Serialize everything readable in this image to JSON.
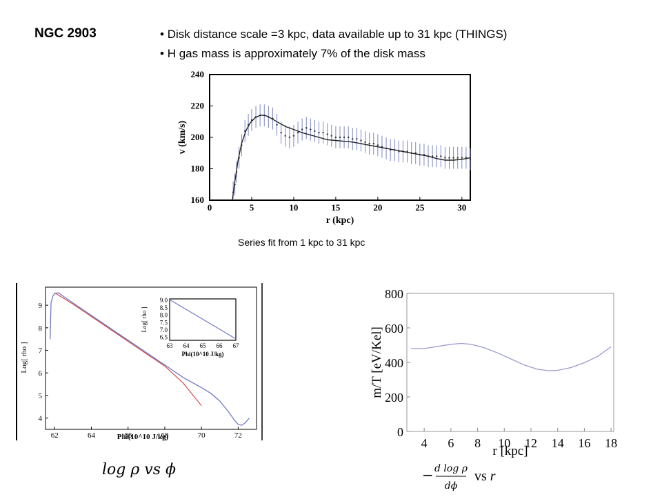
{
  "header": {
    "title": "NGC 2903",
    "bullets": [
      "Disk distance scale =3 kpc, data available up to 31 kpc (THINGS)",
      "H gas mass is approximately  7% of the disk mass"
    ],
    "bullet_char": "•"
  },
  "caption": "Series fit from 1 kpc to 31 kpc",
  "bottom_captions": {
    "left": "log ρ vs ϕ",
    "right": "− d log ρ / dϕ vs r"
  },
  "chart_data": [
    {
      "id": "rotation-curve",
      "type": "scatter",
      "xlabel": "r (kpc)",
      "ylabel": "v (km/s)",
      "xlim": [
        0,
        31
      ],
      "ylim": [
        160,
        240
      ],
      "xticks": [
        0,
        5,
        10,
        15,
        20,
        25,
        30
      ],
      "yticks": [
        160,
        180,
        200,
        220,
        240
      ],
      "grid": false,
      "series": [
        {
          "points": [
            [
              2.8,
              165
            ],
            [
              3.0,
              170
            ],
            [
              3.2,
              178
            ],
            [
              3.5,
              187
            ],
            [
              3.8,
              195
            ],
            [
              4.2,
              204
            ],
            [
              4.6,
              208
            ],
            [
              5.0,
              211
            ],
            [
              5.5,
              213
            ],
            [
              6.0,
              214
            ],
            [
              6.5,
              214
            ],
            [
              7.0,
              213
            ],
            [
              7.5,
              212
            ],
            [
              8.0,
              208
            ],
            [
              8.5,
              203
            ],
            [
              9.0,
              201
            ],
            [
              9.5,
              200
            ],
            [
              10.0,
              201
            ],
            [
              10.5,
              203
            ],
            [
              11.0,
              205
            ],
            [
              11.5,
              206
            ],
            [
              12.0,
              205
            ],
            [
              12.5,
              204
            ],
            [
              13.0,
              203
            ],
            [
              13.5,
              203
            ],
            [
              14.0,
              202
            ],
            [
              14.5,
              201
            ],
            [
              15.0,
              200
            ],
            [
              15.5,
              200
            ],
            [
              16.0,
              200
            ],
            [
              16.5,
              200
            ],
            [
              17.0,
              199
            ],
            [
              17.5,
              199
            ],
            [
              18.0,
              198
            ],
            [
              18.5,
              197
            ],
            [
              19.0,
              196
            ],
            [
              19.5,
              196
            ],
            [
              20.0,
              195
            ],
            [
              20.5,
              194
            ],
            [
              21.0,
              193
            ],
            [
              21.5,
              192
            ],
            [
              22.0,
              192
            ],
            [
              22.5,
              191
            ],
            [
              23.0,
              191
            ],
            [
              23.5,
              191
            ],
            [
              24.0,
              190
            ],
            [
              24.5,
              190
            ],
            [
              25.0,
              189
            ],
            [
              25.5,
              189
            ],
            [
              26.0,
              188
            ],
            [
              26.5,
              188
            ],
            [
              27.0,
              188
            ],
            [
              27.5,
              188
            ],
            [
              28.0,
              187
            ],
            [
              28.5,
              187
            ],
            [
              29.0,
              187
            ],
            [
              29.5,
              187
            ],
            [
              30.0,
              187
            ],
            [
              30.5,
              187
            ],
            [
              31.0,
              186
            ]
          ],
          "error": 7
        },
        {
          "fit": [
            [
              2.7,
              160
            ],
            [
              3.0,
              172
            ],
            [
              3.4,
              186
            ],
            [
              3.8,
              196
            ],
            [
              4.3,
              204
            ],
            [
              4.8,
              209
            ],
            [
              5.4,
              212.5
            ],
            [
              6.0,
              214
            ],
            [
              6.6,
              214
            ],
            [
              7.2,
              212.5
            ],
            [
              8.0,
              210
            ],
            [
              9.0,
              207
            ],
            [
              10.0,
              205
            ],
            [
              11.0,
              203
            ],
            [
              12.0,
              201.5
            ],
            [
              13.0,
              200
            ],
            [
              14.0,
              198.5
            ],
            [
              15.0,
              198
            ],
            [
              16.0,
              197.5
            ],
            [
              17.0,
              197
            ],
            [
              18.0,
              196
            ],
            [
              19.0,
              195
            ],
            [
              20.0,
              194
            ],
            [
              21.0,
              193
            ],
            [
              22.0,
              192
            ],
            [
              23.0,
              191
            ],
            [
              24.0,
              190
            ],
            [
              25.0,
              189
            ],
            [
              26.0,
              188
            ],
            [
              27.0,
              186.5
            ],
            [
              28.0,
              185.5
            ],
            [
              29.0,
              185.5
            ],
            [
              30.0,
              186
            ],
            [
              31.0,
              187
            ]
          ]
        }
      ]
    },
    {
      "id": "log-rho-vs-phi",
      "type": "line",
      "xlabel": "Phi(10^10 J/kg)",
      "ylabel": "Log[ rho ]",
      "xlim": [
        61.5,
        73
      ],
      "ylim": [
        3.5,
        9.8
      ],
      "xticks": [
        62,
        64,
        66,
        68,
        70,
        72
      ],
      "yticks": [
        4,
        5,
        6,
        7,
        8,
        9
      ],
      "grid": false,
      "series": [
        {
          "color": "#6f77c8",
          "points": [
            [
              61.75,
              7.5
            ],
            [
              61.8,
              9.1
            ],
            [
              61.9,
              9.4
            ],
            [
              62.0,
              9.52
            ],
            [
              62.2,
              9.55
            ],
            [
              63.0,
              9.1
            ],
            [
              64.0,
              8.55
            ],
            [
              65.0,
              8.0
            ],
            [
              66.0,
              7.45
            ],
            [
              67.0,
              6.9
            ],
            [
              68.0,
              6.35
            ],
            [
              69.0,
              5.8
            ],
            [
              70.0,
              5.35
            ],
            [
              70.5,
              5.1
            ],
            [
              71.0,
              4.75
            ],
            [
              71.5,
              4.25
            ],
            [
              71.8,
              3.9
            ],
            [
              72.0,
              3.72
            ],
            [
              72.2,
              3.68
            ],
            [
              72.4,
              3.8
            ],
            [
              72.6,
              4.0
            ]
          ]
        },
        {
          "color": "#d23a3a",
          "points": [
            [
              62.0,
              9.55
            ],
            [
              63.0,
              9.05
            ],
            [
              64.0,
              8.5
            ],
            [
              65.0,
              7.95
            ],
            [
              66.0,
              7.4
            ],
            [
              67.0,
              6.85
            ],
            [
              68.0,
              6.3
            ],
            [
              69.0,
              5.55
            ],
            [
              70.0,
              4.55
            ]
          ]
        }
      ],
      "inset": {
        "xlabel": "Phi(10^10 J/kg)",
        "ylabel": "Log[ rho ]",
        "xlim": [
          63,
          67
        ],
        "ylim": [
          6.3,
          9.1
        ],
        "xticks": [
          63,
          64,
          65,
          66,
          67
        ],
        "yticks": [
          6.5,
          7.0,
          7.5,
          8.0,
          8.5,
          9.0
        ],
        "points": [
          [
            63.0,
            9.05
          ],
          [
            67.0,
            6.4
          ]
        ]
      }
    },
    {
      "id": "mT-vs-r",
      "type": "line",
      "xlabel": "r [kpc]",
      "ylabel": "m/T [eV/Kel]",
      "xlim": [
        2.7,
        18.2
      ],
      "ylim": [
        0,
        800
      ],
      "xticks": [
        4,
        6,
        8,
        10,
        12,
        14,
        16,
        18
      ],
      "yticks": [
        0,
        200,
        400,
        600,
        800
      ],
      "grid": false,
      "series": [
        {
          "color": "#9a9ad0",
          "points": [
            [
              3.0,
              480
            ],
            [
              4.0,
              480
            ],
            [
              5.0,
              493
            ],
            [
              6.0,
              505
            ],
            [
              6.8,
              510
            ],
            [
              7.5,
              505
            ],
            [
              8.5,
              485
            ],
            [
              9.5,
              455
            ],
            [
              10.5,
              420
            ],
            [
              11.5,
              385
            ],
            [
              12.5,
              360
            ],
            [
              13.3,
              352
            ],
            [
              14.0,
              354
            ],
            [
              15.0,
              370
            ],
            [
              16.0,
              398
            ],
            [
              17.0,
              435
            ],
            [
              18.0,
              490
            ]
          ]
        }
      ]
    }
  ]
}
